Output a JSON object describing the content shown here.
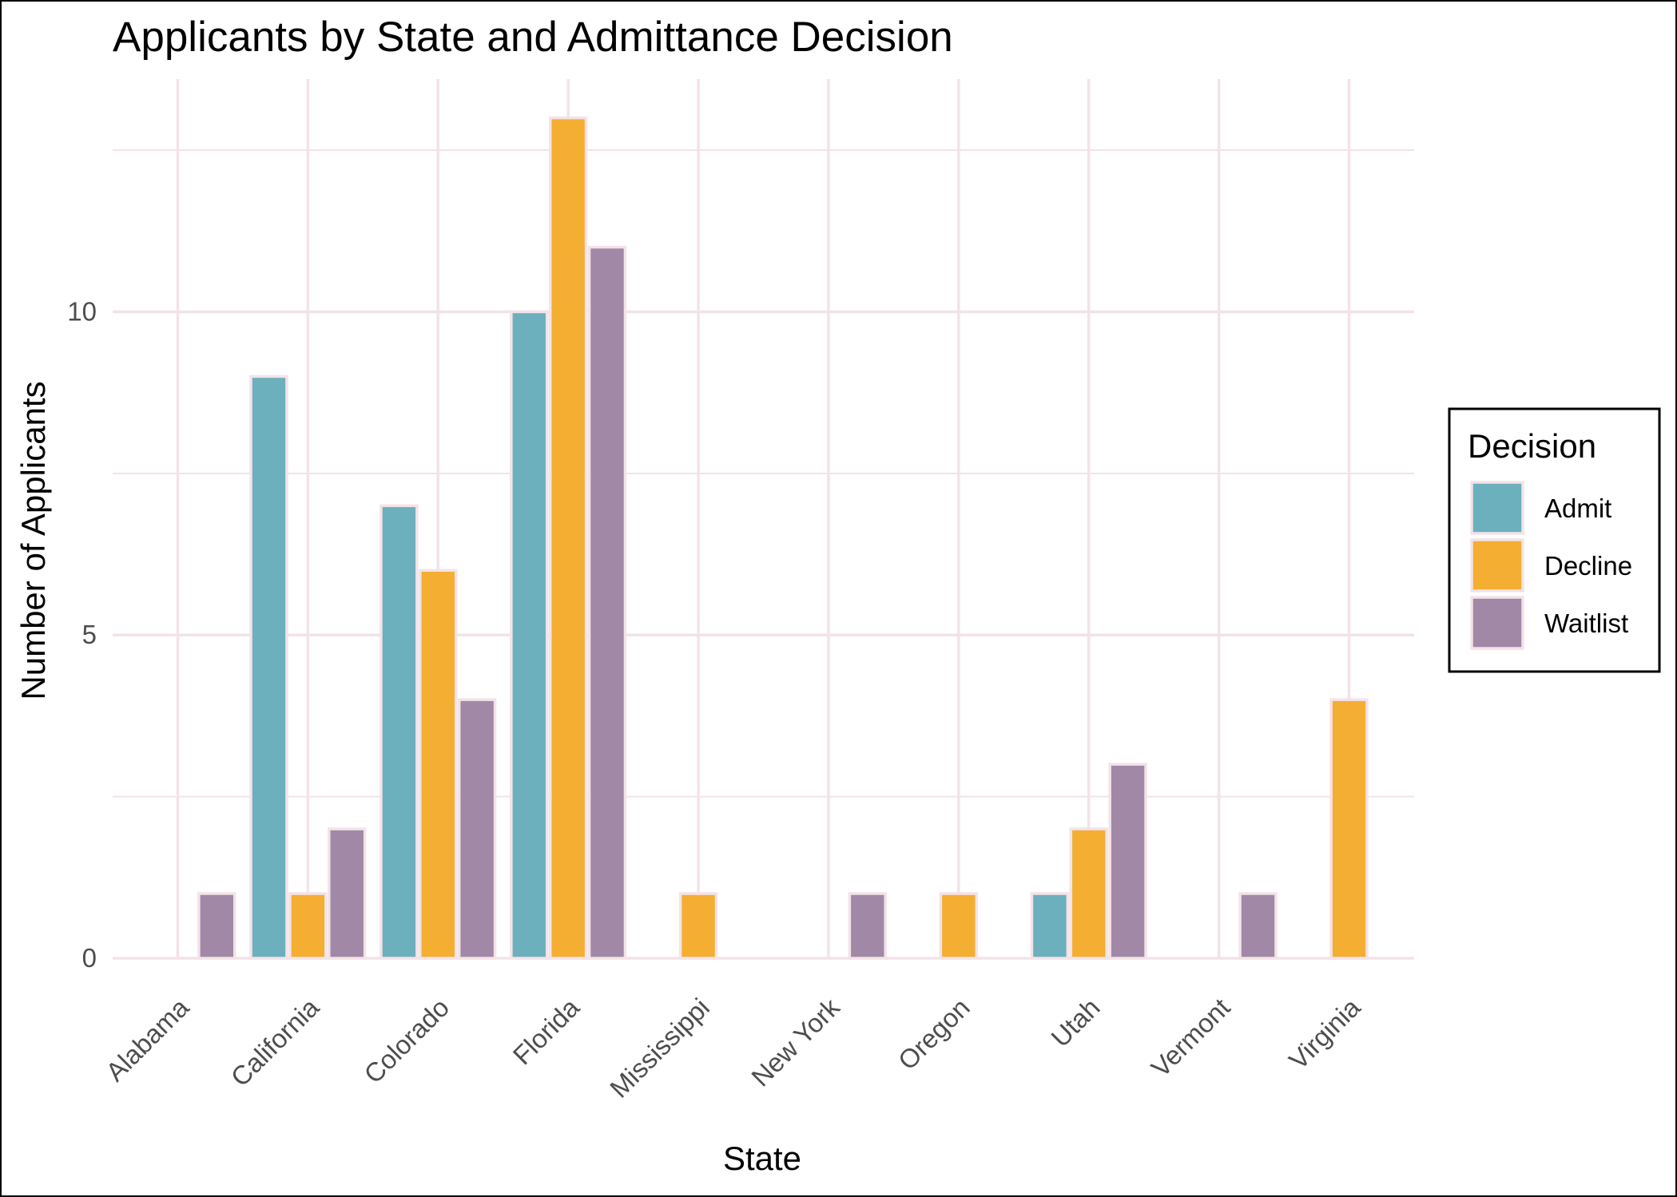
{
  "chart_data": {
    "type": "bar",
    "title": "Applicants by State and Admittance Decision",
    "xlabel": "State",
    "ylabel": "Number of Applicants",
    "categories": [
      "Alabama",
      "California",
      "Colorado",
      "Florida",
      "Mississippi",
      "New York",
      "Oregon",
      "Utah",
      "Vermont",
      "Virginia"
    ],
    "series": [
      {
        "name": "Admit",
        "color": "#6cb0bd",
        "values": [
          null,
          9,
          7,
          10,
          null,
          null,
          null,
          1,
          null,
          null
        ]
      },
      {
        "name": "Decline",
        "color": "#f4ae32",
        "values": [
          null,
          1,
          6,
          13,
          1,
          null,
          1,
          2,
          null,
          4
        ]
      },
      {
        "name": "Waitlist",
        "color": "#a088a6",
        "values": [
          1,
          2,
          4,
          11,
          null,
          1,
          null,
          3,
          1,
          null
        ]
      }
    ],
    "ylim": [
      0,
      13.6
    ],
    "yticks": [
      0,
      5,
      10
    ],
    "grid": true,
    "grid_color": "#f3e3e8",
    "bar_outline_color": "#f3e3e8",
    "legend": {
      "title": "Decision",
      "placement": "right"
    }
  }
}
